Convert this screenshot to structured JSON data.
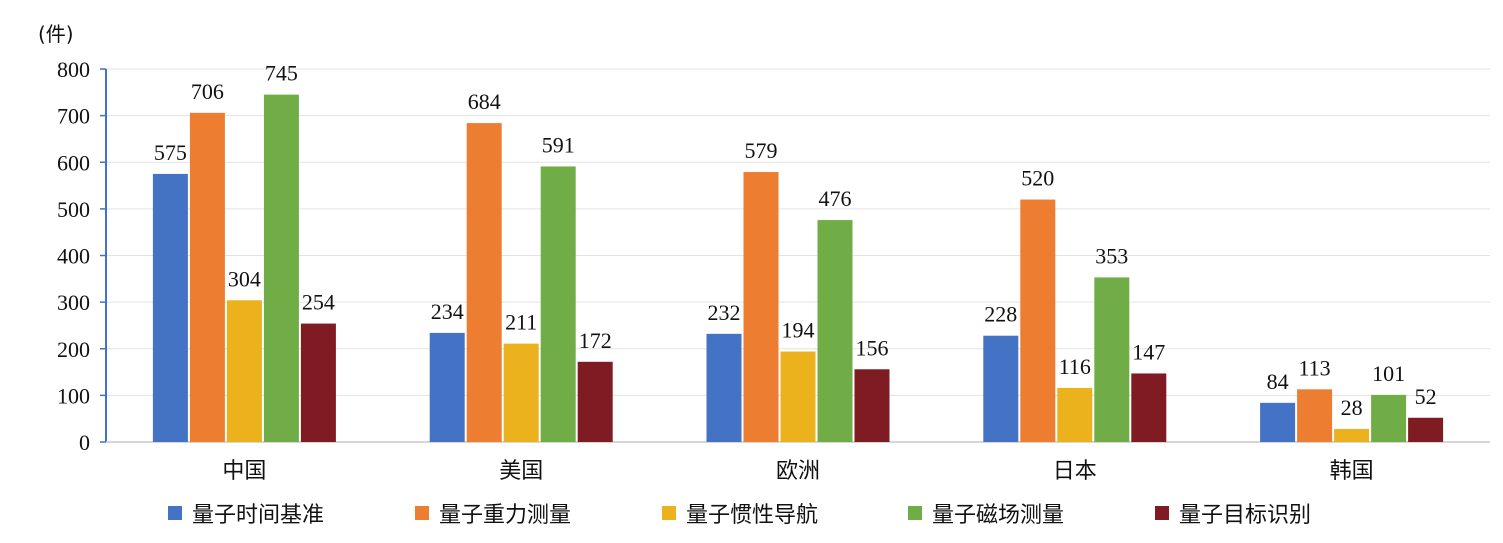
{
  "chart_data": {
    "type": "bar",
    "unit_label": "(件)",
    "categories": [
      "中国",
      "美国",
      "欧洲",
      "日本",
      "韩国"
    ],
    "series": [
      {
        "name": "量子时间基准",
        "color": "#4472c4",
        "values": [
          575,
          234,
          232,
          228,
          84
        ]
      },
      {
        "name": "量子重力测量",
        "color": "#ed7d31",
        "values": [
          706,
          684,
          579,
          520,
          113
        ]
      },
      {
        "name": "量子惯性导航",
        "color": "#ebb21e",
        "values": [
          304,
          211,
          194,
          116,
          28
        ]
      },
      {
        "name": "量子磁场测量",
        "color": "#70ad47",
        "values": [
          745,
          591,
          476,
          353,
          101
        ]
      },
      {
        "name": "量子目标识别",
        "color": "#7f1b22",
        "values": [
          254,
          172,
          156,
          147,
          52
        ]
      }
    ],
    "ylim": [
      0,
      800
    ],
    "yticks": [
      0,
      100,
      200,
      300,
      400,
      500,
      600,
      700,
      800
    ],
    "grid": true,
    "legend_position": "bottom"
  }
}
